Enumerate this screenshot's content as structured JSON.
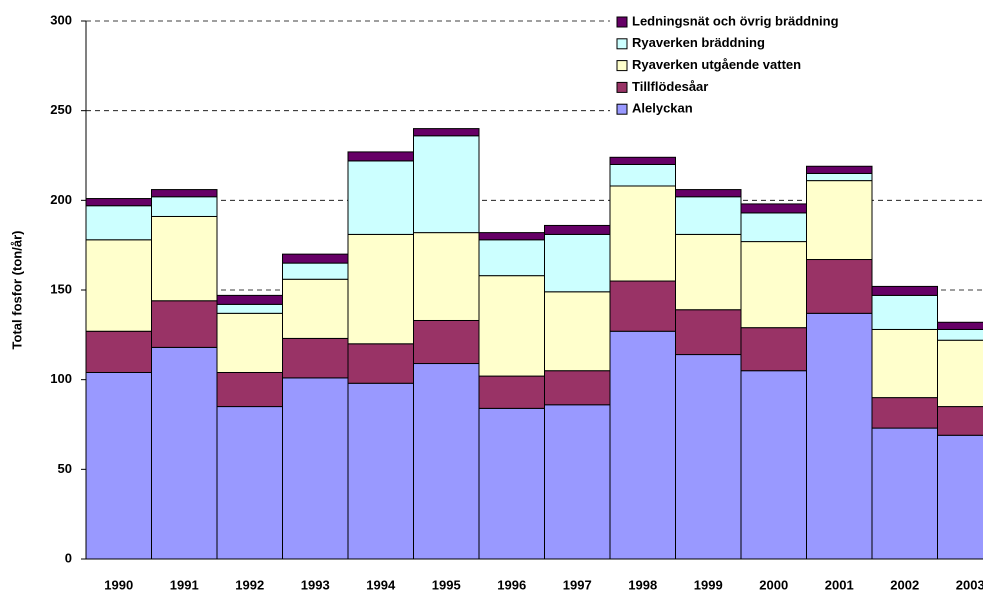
{
  "chart_data": {
    "type": "stacked_bar",
    "y_label": "Total fosfor (ton/år)",
    "categories": [
      "1990",
      "1991",
      "1992",
      "1993",
      "1994",
      "1995",
      "1996",
      "1997",
      "1998",
      "1999",
      "2000",
      "2001",
      "2002",
      "2003"
    ],
    "series": [
      {
        "name": "Alelyckan",
        "color": "#9999ff",
        "values": [
          104,
          118,
          85,
          101,
          98,
          109,
          84,
          86,
          127,
          114,
          105,
          137,
          73,
          69
        ]
      },
      {
        "name": "Tillflödesåar",
        "color": "#993366",
        "values": [
          23,
          26,
          19,
          22,
          22,
          24,
          18,
          19,
          28,
          25,
          24,
          30,
          17,
          16
        ]
      },
      {
        "name": "Ryaverken utgående vatten",
        "color": "#ffffcc",
        "values": [
          51,
          47,
          33,
          33,
          61,
          49,
          56,
          44,
          53,
          42,
          48,
          44,
          38,
          37
        ]
      },
      {
        "name": "Ryaverken bräddning",
        "color": "#ccffff",
        "values": [
          19,
          11,
          5,
          9,
          41,
          54,
          20,
          32,
          12,
          21,
          16,
          4,
          19,
          6
        ]
      },
      {
        "name": "Ledningsnät och övrig bräddning",
        "color": "#660066",
        "values": [
          4,
          4,
          5,
          5,
          5,
          4,
          4,
          5,
          4,
          4,
          5,
          4,
          5,
          4
        ]
      }
    ],
    "ylim": [
      0,
      300
    ],
    "yticks": [
      0,
      50,
      100,
      150,
      200,
      250,
      300
    ],
    "grid": true
  }
}
